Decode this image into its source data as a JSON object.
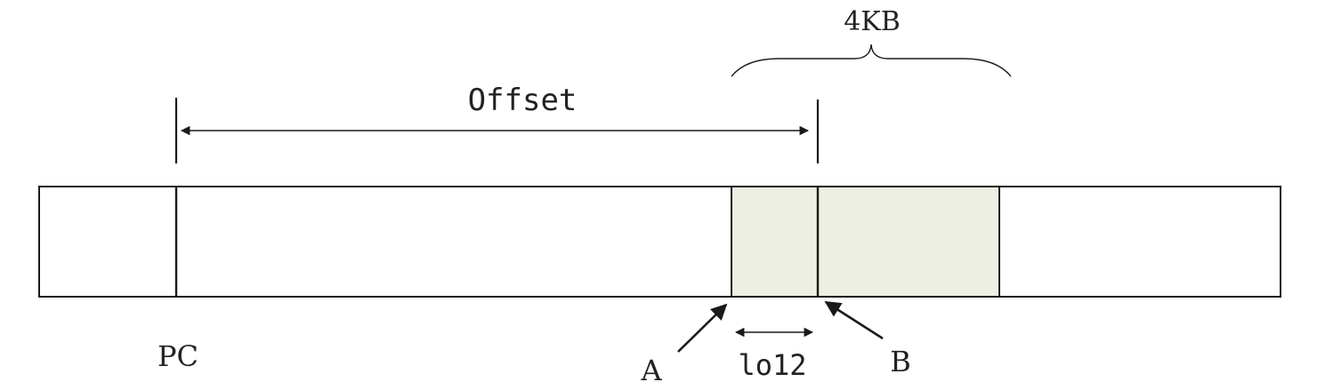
{
  "labels": {
    "size": "4KB",
    "offset": "Offset",
    "pc": "PC",
    "a": "A",
    "b": "B",
    "lo12": "lo12"
  },
  "colors": {
    "line": "#1a1a1a",
    "highlight": "#ecefe2",
    "background": "#ffffff"
  }
}
